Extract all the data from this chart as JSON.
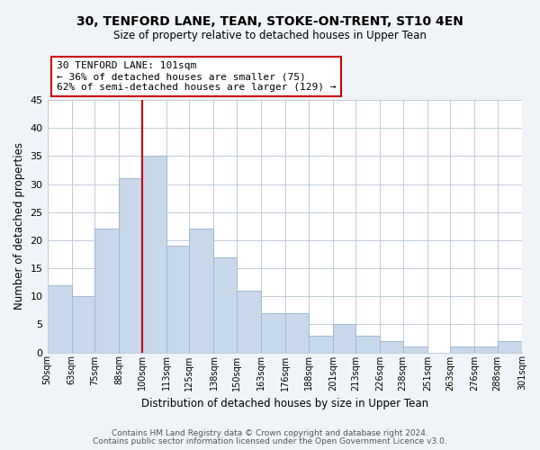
{
  "title": "30, TENFORD LANE, TEAN, STOKE-ON-TRENT, ST10 4EN",
  "subtitle": "Size of property relative to detached houses in Upper Tean",
  "xlabel": "Distribution of detached houses by size in Upper Tean",
  "ylabel": "Number of detached properties",
  "bar_color": "#c8d8ea",
  "bar_edgecolor": "#a0b8d0",
  "vline_x": 100,
  "vline_color": "#cc0000",
  "annotation_title": "30 TENFORD LANE: 101sqm",
  "annotation_line1": "← 36% of detached houses are smaller (75)",
  "annotation_line2": "62% of semi-detached houses are larger (129) →",
  "annotation_box_color": "white",
  "annotation_box_edgecolor": "#cc0000",
  "bin_edges": [
    50,
    63,
    75,
    88,
    100,
    113,
    125,
    138,
    150,
    163,
    176,
    188,
    201,
    213,
    226,
    238,
    251,
    263,
    276,
    288,
    301
  ],
  "bin_labels": [
    "50sqm",
    "63sqm",
    "75sqm",
    "88sqm",
    "100sqm",
    "113sqm",
    "125sqm",
    "138sqm",
    "150sqm",
    "163sqm",
    "176sqm",
    "188sqm",
    "201sqm",
    "213sqm",
    "226sqm",
    "238sqm",
    "251sqm",
    "263sqm",
    "276sqm",
    "288sqm",
    "301sqm"
  ],
  "counts": [
    12,
    10,
    22,
    31,
    35,
    19,
    22,
    17,
    11,
    7,
    7,
    3,
    5,
    3,
    2,
    1,
    0,
    1,
    1,
    2
  ],
  "ylim": [
    0,
    45
  ],
  "yticks": [
    0,
    5,
    10,
    15,
    20,
    25,
    30,
    35,
    40,
    45
  ],
  "footer1": "Contains HM Land Registry data © Crown copyright and database right 2024.",
  "footer2": "Contains public sector information licensed under the Open Government Licence v3.0.",
  "background_color": "#f0f4f8",
  "plot_bg_color": "white",
  "grid_color": "#c0ccd8"
}
